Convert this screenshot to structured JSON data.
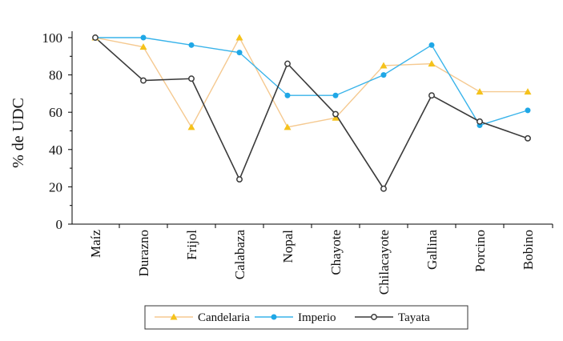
{
  "chart_data": {
    "type": "line",
    "title": "",
    "xlabel": "",
    "ylabel": "% de UDC",
    "ylim": [
      0,
      100
    ],
    "yticks": [
      0,
      20,
      40,
      60,
      80,
      100
    ],
    "categories": [
      "Maíz",
      "Durazno",
      "Frijol",
      "Calabaza",
      "Nopal",
      "Chayote",
      "Chilacayote",
      "Gallina",
      "Porcino",
      "Bobino"
    ],
    "series": [
      {
        "name": "Candelaria",
        "color": "#F5C990",
        "marker": "triangle",
        "marker_color": "#F5C21B",
        "values": [
          100,
          95,
          52,
          100,
          52,
          57,
          85,
          86,
          71,
          71
        ]
      },
      {
        "name": "Imperio",
        "color": "#38B3EA",
        "marker": "circle-filled",
        "marker_color": "#1FA7E6",
        "values": [
          100,
          100,
          96,
          92,
          69,
          69,
          80,
          96,
          53,
          61
        ]
      },
      {
        "name": "Tayata",
        "color": "#3A3A3A",
        "marker": "circle-open",
        "marker_color": "#3A3A3A",
        "values": [
          100,
          77,
          78,
          24,
          86,
          59,
          19,
          69,
          55,
          46
        ]
      }
    ],
    "legend_position": "bottom-center",
    "grid": false
  }
}
